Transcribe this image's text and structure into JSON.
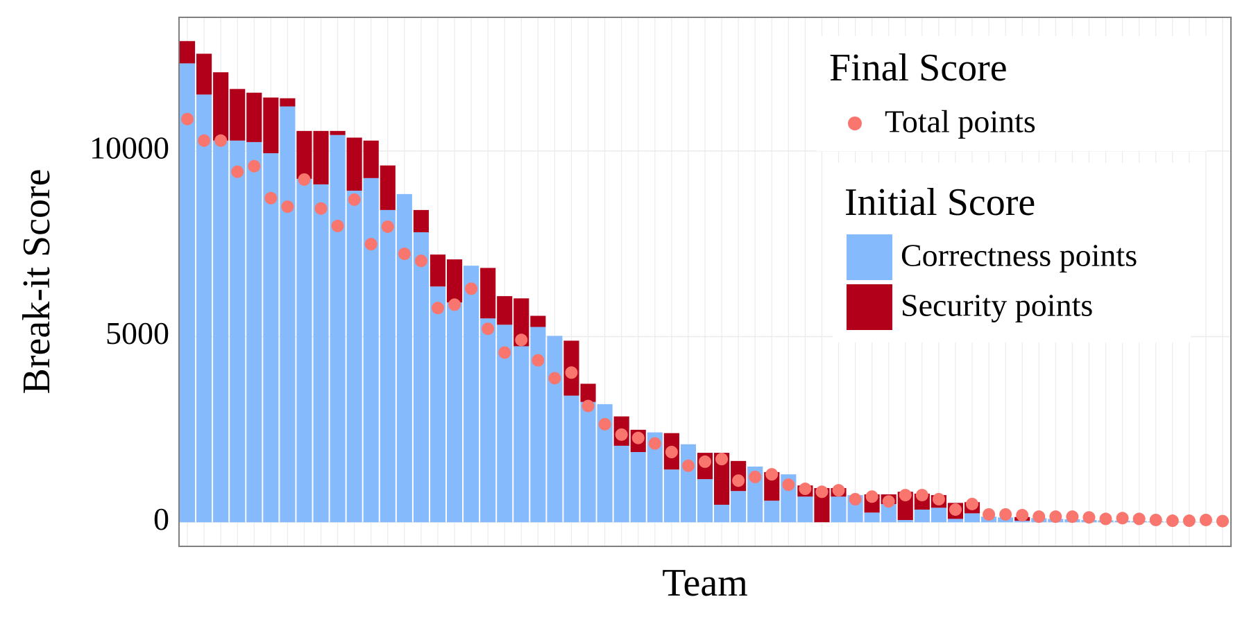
{
  "chart_data": {
    "type": "bar",
    "stacked": true,
    "x_label": "Team",
    "y_label": "Break-it Score",
    "categories": [
      null,
      null,
      null,
      null,
      null,
      null,
      null,
      null,
      null,
      null,
      null,
      null,
      null,
      null,
      null,
      null,
      null,
      null,
      null,
      null,
      null,
      null,
      null,
      null,
      null,
      null,
      null,
      null,
      null,
      null,
      null,
      null,
      null,
      null,
      null,
      null,
      null,
      null,
      null,
      null,
      null,
      null,
      null,
      null,
      null,
      null,
      null,
      null,
      null,
      null,
      null,
      null,
      null,
      null,
      null,
      null,
      null,
      null,
      null,
      null,
      null,
      null,
      null
    ],
    "series": [
      {
        "name": "Correctness points",
        "color": "#85bbfd",
        "kind": "bar",
        "values": [
          12360,
          11520,
          10280,
          10280,
          10240,
          9940,
          11200,
          9250,
          9100,
          10430,
          8930,
          9270,
          8410,
          8840,
          7810,
          6350,
          5920,
          6910,
          5490,
          5320,
          4740,
          5260,
          5020,
          3410,
          3240,
          3180,
          2060,
          1890,
          2420,
          1420,
          2100,
          1160,
          470,
          840,
          1500,
          580,
          1290,
          690,
          0,
          690,
          730,
          260,
          490,
          60,
          340,
          390,
          90,
          240,
          150,
          130,
          40,
          110,
          90,
          80,
          60,
          50,
          40,
          30,
          20,
          15,
          10,
          5,
          0
        ]
      },
      {
        "name": "Security points",
        "color": "#b2001a",
        "kind": "bar",
        "values": [
          600,
          1100,
          1840,
          1390,
          1330,
          1500,
          220,
          1290,
          1440,
          110,
          1430,
          1010,
          1200,
          0,
          600,
          860,
          1160,
          0,
          1360,
          770,
          1290,
          300,
          0,
          1480,
          490,
          0,
          790,
          600,
          0,
          980,
          0,
          710,
          1400,
          810,
          0,
          770,
          0,
          300,
          920,
          230,
          0,
          490,
          260,
          760,
          430,
          340,
          430,
          300,
          0,
          0,
          100,
          0,
          0,
          0,
          0,
          0,
          0,
          0,
          0,
          0,
          0,
          0,
          0
        ]
      },
      {
        "name": "Total points",
        "color": "#f8766d",
        "kind": "scatter",
        "values": [
          10860,
          10280,
          10280,
          9440,
          9590,
          8730,
          8500,
          9230,
          8450,
          7980,
          8690,
          7490,
          7960,
          7230,
          7040,
          5770,
          5860,
          6290,
          5210,
          4570,
          4910,
          4360,
          3880,
          4030,
          3130,
          2640,
          2360,
          2270,
          2120,
          1890,
          1520,
          1630,
          1700,
          1120,
          1220,
          1290,
          1010,
          900,
          820,
          860,
          620,
          690,
          560,
          730,
          730,
          620,
          340,
          490,
          210,
          210,
          190,
          150,
          150,
          150,
          130,
          90,
          110,
          90,
          60,
          40,
          40,
          60,
          30
        ]
      }
    ],
    "legend_titles": [
      "Final Score",
      "Initial Score"
    ],
    "legend": "top-right",
    "ylim": [
      -650,
      13600
    ],
    "yticks": [
      0,
      5000,
      10000
    ],
    "grid": true
  }
}
